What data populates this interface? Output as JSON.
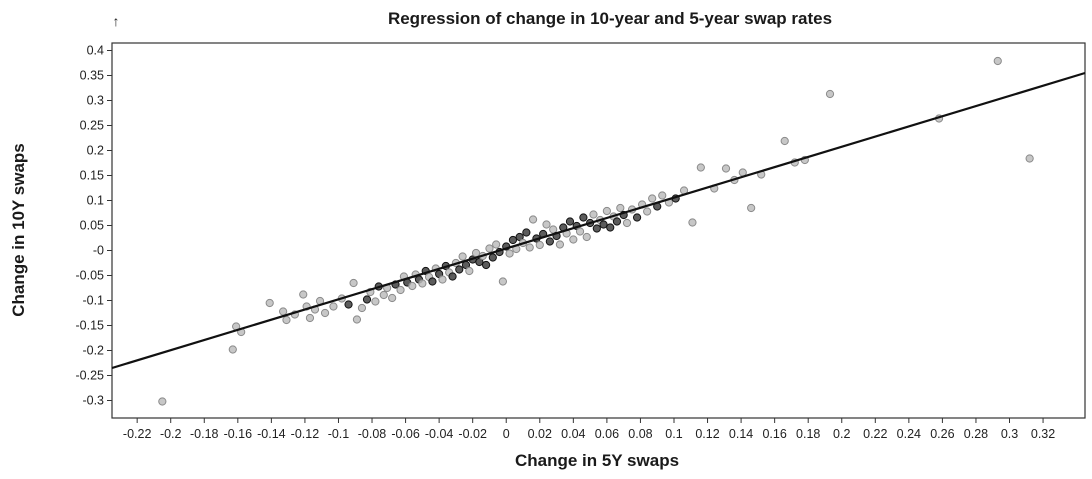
{
  "chart_data": {
    "type": "scatter",
    "title": "Regression of change in 10-year and 5-year swap rates",
    "xlabel": "Change in 5Y swaps",
    "ylabel": "Change in 10Y swaps",
    "corner_glyph": "↑",
    "xlim": [
      -0.235,
      0.345
    ],
    "ylim": [
      -0.335,
      0.415
    ],
    "x_ticks": [
      -0.22,
      -0.2,
      -0.18,
      -0.16,
      -0.14,
      -0.12,
      -0.1,
      -0.08,
      -0.06,
      -0.04,
      -0.02,
      0,
      0.02,
      0.04,
      0.06,
      0.08,
      0.1,
      0.12,
      0.14,
      0.16,
      0.18,
      0.2,
      0.22,
      0.24,
      0.26,
      0.28,
      0.3,
      0.32
    ],
    "x_tick_labels": [
      "-0.22",
      "-0.2",
      "-0.18",
      "-0.16",
      "-0.14",
      "-0.12",
      "-0.1",
      "-0.08",
      "-0.06",
      "-0.04",
      "-0.02",
      "0",
      "0.02",
      "0.04",
      "0.06",
      "0.08",
      "0.1",
      "0.12",
      "0.14",
      "0.16",
      "0.18",
      "0.2",
      "0.22",
      "0.24",
      "0.26",
      "0.28",
      "0.3",
      "0.32"
    ],
    "y_ticks": [
      0.4,
      0.35,
      0.3,
      0.25,
      0.2,
      0.15,
      0.1,
      0.05,
      0,
      -0.05,
      -0.1,
      -0.15,
      -0.2,
      -0.25,
      -0.3
    ],
    "y_tick_labels": [
      "0.4",
      "0.35",
      "0.3",
      "0.25",
      "0.2",
      "0.15",
      "0.1",
      "0.05",
      "-0",
      "-0.05",
      "-0.1",
      "-0.15",
      "-0.2",
      "-0.25",
      "-0.3"
    ],
    "grid": false,
    "regression_line": {
      "x": [
        -0.235,
        0.345
      ],
      "y": [
        -0.235,
        0.355
      ]
    },
    "points": [
      {
        "x": -0.205,
        "y": -0.302,
        "tone": "light"
      },
      {
        "x": -0.163,
        "y": -0.198,
        "tone": "light"
      },
      {
        "x": -0.161,
        "y": -0.152,
        "tone": "light"
      },
      {
        "x": -0.158,
        "y": -0.163,
        "tone": "light"
      },
      {
        "x": -0.141,
        "y": -0.105,
        "tone": "light"
      },
      {
        "x": -0.133,
        "y": -0.122,
        "tone": "light"
      },
      {
        "x": -0.131,
        "y": -0.139,
        "tone": "light"
      },
      {
        "x": -0.126,
        "y": -0.128,
        "tone": "light"
      },
      {
        "x": -0.121,
        "y": -0.088,
        "tone": "light"
      },
      {
        "x": -0.119,
        "y": -0.112,
        "tone": "light"
      },
      {
        "x": -0.117,
        "y": -0.135,
        "tone": "light"
      },
      {
        "x": -0.114,
        "y": -0.118,
        "tone": "light"
      },
      {
        "x": -0.111,
        "y": -0.101,
        "tone": "light"
      },
      {
        "x": -0.108,
        "y": -0.125,
        "tone": "light"
      },
      {
        "x": -0.103,
        "y": -0.112,
        "tone": "light"
      },
      {
        "x": -0.098,
        "y": -0.096,
        "tone": "light"
      },
      {
        "x": -0.094,
        "y": -0.108,
        "tone": "dark"
      },
      {
        "x": -0.091,
        "y": -0.065,
        "tone": "light"
      },
      {
        "x": -0.089,
        "y": -0.138,
        "tone": "light"
      },
      {
        "x": -0.086,
        "y": -0.115,
        "tone": "light"
      },
      {
        "x": -0.083,
        "y": -0.098,
        "tone": "dark"
      },
      {
        "x": -0.081,
        "y": -0.083,
        "tone": "light"
      },
      {
        "x": -0.078,
        "y": -0.102,
        "tone": "light"
      },
      {
        "x": -0.076,
        "y": -0.072,
        "tone": "dark"
      },
      {
        "x": -0.073,
        "y": -0.089,
        "tone": "light"
      },
      {
        "x": -0.071,
        "y": -0.075,
        "tone": "light"
      },
      {
        "x": -0.068,
        "y": -0.095,
        "tone": "light"
      },
      {
        "x": -0.066,
        "y": -0.068,
        "tone": "dark"
      },
      {
        "x": -0.063,
        "y": -0.079,
        "tone": "light"
      },
      {
        "x": -0.061,
        "y": -0.052,
        "tone": "light"
      },
      {
        "x": -0.059,
        "y": -0.064,
        "tone": "dark"
      },
      {
        "x": -0.056,
        "y": -0.071,
        "tone": "light"
      },
      {
        "x": -0.054,
        "y": -0.048,
        "tone": "light"
      },
      {
        "x": -0.052,
        "y": -0.058,
        "tone": "dark"
      },
      {
        "x": -0.05,
        "y": -0.066,
        "tone": "light"
      },
      {
        "x": -0.048,
        "y": -0.041,
        "tone": "dark"
      },
      {
        "x": -0.046,
        "y": -0.053,
        "tone": "light"
      },
      {
        "x": -0.044,
        "y": -0.062,
        "tone": "dark"
      },
      {
        "x": -0.042,
        "y": -0.036,
        "tone": "light"
      },
      {
        "x": -0.04,
        "y": -0.047,
        "tone": "dark"
      },
      {
        "x": -0.038,
        "y": -0.058,
        "tone": "light"
      },
      {
        "x": -0.036,
        "y": -0.031,
        "tone": "dark"
      },
      {
        "x": -0.034,
        "y": -0.044,
        "tone": "light"
      },
      {
        "x": -0.032,
        "y": -0.052,
        "tone": "dark"
      },
      {
        "x": -0.03,
        "y": -0.025,
        "tone": "light"
      },
      {
        "x": -0.028,
        "y": -0.038,
        "tone": "dark"
      },
      {
        "x": -0.026,
        "y": -0.012,
        "tone": "light"
      },
      {
        "x": -0.024,
        "y": -0.029,
        "tone": "dark"
      },
      {
        "x": -0.022,
        "y": -0.041,
        "tone": "light"
      },
      {
        "x": -0.02,
        "y": -0.018,
        "tone": "dark"
      },
      {
        "x": -0.018,
        "y": -0.005,
        "tone": "light"
      },
      {
        "x": -0.016,
        "y": -0.023,
        "tone": "dark"
      },
      {
        "x": -0.014,
        "y": -0.011,
        "tone": "light"
      },
      {
        "x": -0.012,
        "y": -0.029,
        "tone": "dark"
      },
      {
        "x": -0.01,
        "y": 0.004,
        "tone": "light"
      },
      {
        "x": -0.008,
        "y": -0.014,
        "tone": "dark"
      },
      {
        "x": -0.006,
        "y": 0.012,
        "tone": "light"
      },
      {
        "x": -0.004,
        "y": -0.003,
        "tone": "dark"
      },
      {
        "x": -0.002,
        "y": -0.062,
        "tone": "light"
      },
      {
        "x": 0.0,
        "y": 0.008,
        "tone": "dark"
      },
      {
        "x": 0.002,
        "y": -0.006,
        "tone": "light"
      },
      {
        "x": 0.004,
        "y": 0.021,
        "tone": "dark"
      },
      {
        "x": 0.006,
        "y": 0.003,
        "tone": "light"
      },
      {
        "x": 0.008,
        "y": 0.027,
        "tone": "dark"
      },
      {
        "x": 0.01,
        "y": 0.015,
        "tone": "light"
      },
      {
        "x": 0.012,
        "y": 0.036,
        "tone": "dark"
      },
      {
        "x": 0.014,
        "y": 0.006,
        "tone": "light"
      },
      {
        "x": 0.016,
        "y": 0.062,
        "tone": "light"
      },
      {
        "x": 0.018,
        "y": 0.024,
        "tone": "dark"
      },
      {
        "x": 0.02,
        "y": 0.011,
        "tone": "light"
      },
      {
        "x": 0.022,
        "y": 0.033,
        "tone": "dark"
      },
      {
        "x": 0.024,
        "y": 0.052,
        "tone": "light"
      },
      {
        "x": 0.026,
        "y": 0.018,
        "tone": "dark"
      },
      {
        "x": 0.028,
        "y": 0.042,
        "tone": "light"
      },
      {
        "x": 0.03,
        "y": 0.029,
        "tone": "dark"
      },
      {
        "x": 0.032,
        "y": 0.012,
        "tone": "light"
      },
      {
        "x": 0.034,
        "y": 0.046,
        "tone": "dark"
      },
      {
        "x": 0.036,
        "y": 0.034,
        "tone": "light"
      },
      {
        "x": 0.038,
        "y": 0.058,
        "tone": "dark"
      },
      {
        "x": 0.04,
        "y": 0.022,
        "tone": "light"
      },
      {
        "x": 0.042,
        "y": 0.049,
        "tone": "dark"
      },
      {
        "x": 0.044,
        "y": 0.038,
        "tone": "light"
      },
      {
        "x": 0.046,
        "y": 0.066,
        "tone": "dark"
      },
      {
        "x": 0.048,
        "y": 0.027,
        "tone": "light"
      },
      {
        "x": 0.05,
        "y": 0.055,
        "tone": "dark"
      },
      {
        "x": 0.052,
        "y": 0.072,
        "tone": "light"
      },
      {
        "x": 0.054,
        "y": 0.044,
        "tone": "dark"
      },
      {
        "x": 0.056,
        "y": 0.061,
        "tone": "light"
      },
      {
        "x": 0.058,
        "y": 0.052,
        "tone": "dark"
      },
      {
        "x": 0.06,
        "y": 0.079,
        "tone": "light"
      },
      {
        "x": 0.062,
        "y": 0.046,
        "tone": "dark"
      },
      {
        "x": 0.064,
        "y": 0.068,
        "tone": "light"
      },
      {
        "x": 0.066,
        "y": 0.058,
        "tone": "dark"
      },
      {
        "x": 0.068,
        "y": 0.085,
        "tone": "light"
      },
      {
        "x": 0.07,
        "y": 0.071,
        "tone": "dark"
      },
      {
        "x": 0.072,
        "y": 0.055,
        "tone": "light"
      },
      {
        "x": 0.075,
        "y": 0.082,
        "tone": "light"
      },
      {
        "x": 0.078,
        "y": 0.066,
        "tone": "dark"
      },
      {
        "x": 0.081,
        "y": 0.092,
        "tone": "light"
      },
      {
        "x": 0.084,
        "y": 0.078,
        "tone": "light"
      },
      {
        "x": 0.087,
        "y": 0.104,
        "tone": "light"
      },
      {
        "x": 0.09,
        "y": 0.088,
        "tone": "dark"
      },
      {
        "x": 0.093,
        "y": 0.11,
        "tone": "light"
      },
      {
        "x": 0.097,
        "y": 0.096,
        "tone": "light"
      },
      {
        "x": 0.101,
        "y": 0.104,
        "tone": "dark"
      },
      {
        "x": 0.106,
        "y": 0.12,
        "tone": "light"
      },
      {
        "x": 0.111,
        "y": 0.056,
        "tone": "light"
      },
      {
        "x": 0.116,
        "y": 0.166,
        "tone": "light"
      },
      {
        "x": 0.124,
        "y": 0.124,
        "tone": "light"
      },
      {
        "x": 0.131,
        "y": 0.164,
        "tone": "light"
      },
      {
        "x": 0.136,
        "y": 0.141,
        "tone": "light"
      },
      {
        "x": 0.141,
        "y": 0.156,
        "tone": "light"
      },
      {
        "x": 0.146,
        "y": 0.085,
        "tone": "light"
      },
      {
        "x": 0.152,
        "y": 0.152,
        "tone": "light"
      },
      {
        "x": 0.166,
        "y": 0.219,
        "tone": "light"
      },
      {
        "x": 0.172,
        "y": 0.176,
        "tone": "light"
      },
      {
        "x": 0.178,
        "y": 0.181,
        "tone": "light"
      },
      {
        "x": 0.193,
        "y": 0.313,
        "tone": "light"
      },
      {
        "x": 0.258,
        "y": 0.264,
        "tone": "light"
      },
      {
        "x": 0.293,
        "y": 0.379,
        "tone": "light"
      },
      {
        "x": 0.312,
        "y": 0.184,
        "tone": "light"
      }
    ],
    "colors": {
      "point_light_fill": "#bdbdbd",
      "point_light_stroke": "#8a8a8a",
      "point_dark_fill": "#4a4a4a",
      "point_dark_stroke": "#111111",
      "line": "#111111",
      "frame": "#333333"
    }
  }
}
